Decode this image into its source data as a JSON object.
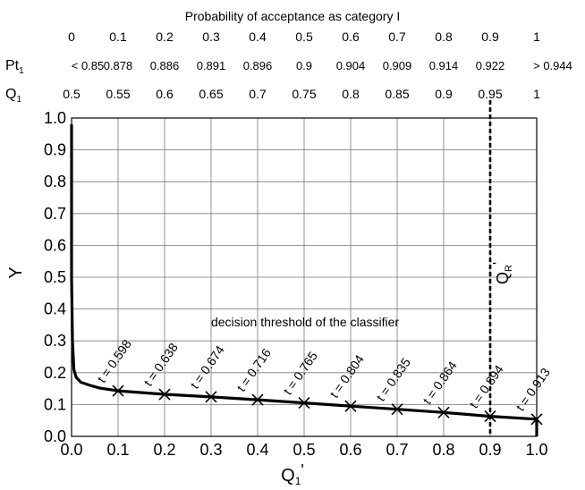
{
  "chart_data": {
    "type": "line",
    "top_title": "Probability of acceptance as category I",
    "top_rows": [
      {
        "label": "",
        "values": [
          "0",
          "0.1",
          "0.2",
          "0.3",
          "0.4",
          "0.5",
          "0.6",
          "0.7",
          "0.8",
          "0.9",
          "1"
        ]
      },
      {
        "label": "Pt",
        "label_sub": "1",
        "values": [
          "< 0.85",
          "0.878",
          "0.886",
          "0.891",
          "0.896",
          "0.9",
          "0.904",
          "0.909",
          "0.914",
          "0.922",
          "> 0.944"
        ]
      },
      {
        "label": "Q",
        "label_sub": "1",
        "values": [
          "0.5",
          "0.55",
          "0.6",
          "0.65",
          "0.7",
          "0.75",
          "0.8",
          "0.85",
          "0.9",
          "0.95",
          "1"
        ]
      }
    ],
    "xlabel": "Q",
    "xlabel_sub": "1",
    "xlabel_prime": "'",
    "ylabel": "Y",
    "xlim": [
      0.0,
      1.0
    ],
    "ylim": [
      0.0,
      1.0
    ],
    "x_ticks": [
      "0.0",
      "0.1",
      "0.2",
      "0.3",
      "0.4",
      "0.5",
      "0.6",
      "0.7",
      "0.8",
      "0.9",
      "1.0"
    ],
    "y_ticks": [
      "0.0",
      "0.1",
      "0.2",
      "0.3",
      "0.4",
      "0.5",
      "0.6",
      "0.7",
      "0.8",
      "0.9",
      "1.0"
    ],
    "grid": true,
    "series": [
      {
        "x": [
          0.0,
          0.0,
          0.002,
          0.005,
          0.01,
          0.02,
          0.04,
          0.06,
          0.1,
          0.2,
          0.3,
          0.4,
          0.5,
          0.6,
          0.7,
          0.8,
          0.9,
          1.0
        ],
        "y": [
          0.98,
          0.5,
          0.3,
          0.21,
          0.185,
          0.17,
          0.16,
          0.152,
          0.143,
          0.132,
          0.124,
          0.115,
          0.105,
          0.095,
          0.085,
          0.075,
          0.063,
          0.054
        ]
      }
    ],
    "threshold_points": [
      {
        "x": 0.1,
        "y": 0.143,
        "label": "t = 0.598"
      },
      {
        "x": 0.2,
        "y": 0.132,
        "label": "t = 0.638"
      },
      {
        "x": 0.3,
        "y": 0.124,
        "label": "t = 0.674"
      },
      {
        "x": 0.4,
        "y": 0.115,
        "label": "t = 0.716"
      },
      {
        "x": 0.5,
        "y": 0.105,
        "label": "t = 0.765"
      },
      {
        "x": 0.6,
        "y": 0.095,
        "label": "t = 0.804"
      },
      {
        "x": 0.7,
        "y": 0.085,
        "label": "t = 0.835"
      },
      {
        "x": 0.8,
        "y": 0.075,
        "label": "t = 0.864"
      },
      {
        "x": 0.9,
        "y": 0.063,
        "label": "t = 0.894"
      },
      {
        "x": 1.0,
        "y": 0.054,
        "label": "t = 0.913"
      }
    ],
    "threshold_caption": "decision threshold of the classifier",
    "reference_line": {
      "x": 0.9,
      "label": "Q",
      "label_sub": "R",
      "label_prime": "'"
    }
  }
}
